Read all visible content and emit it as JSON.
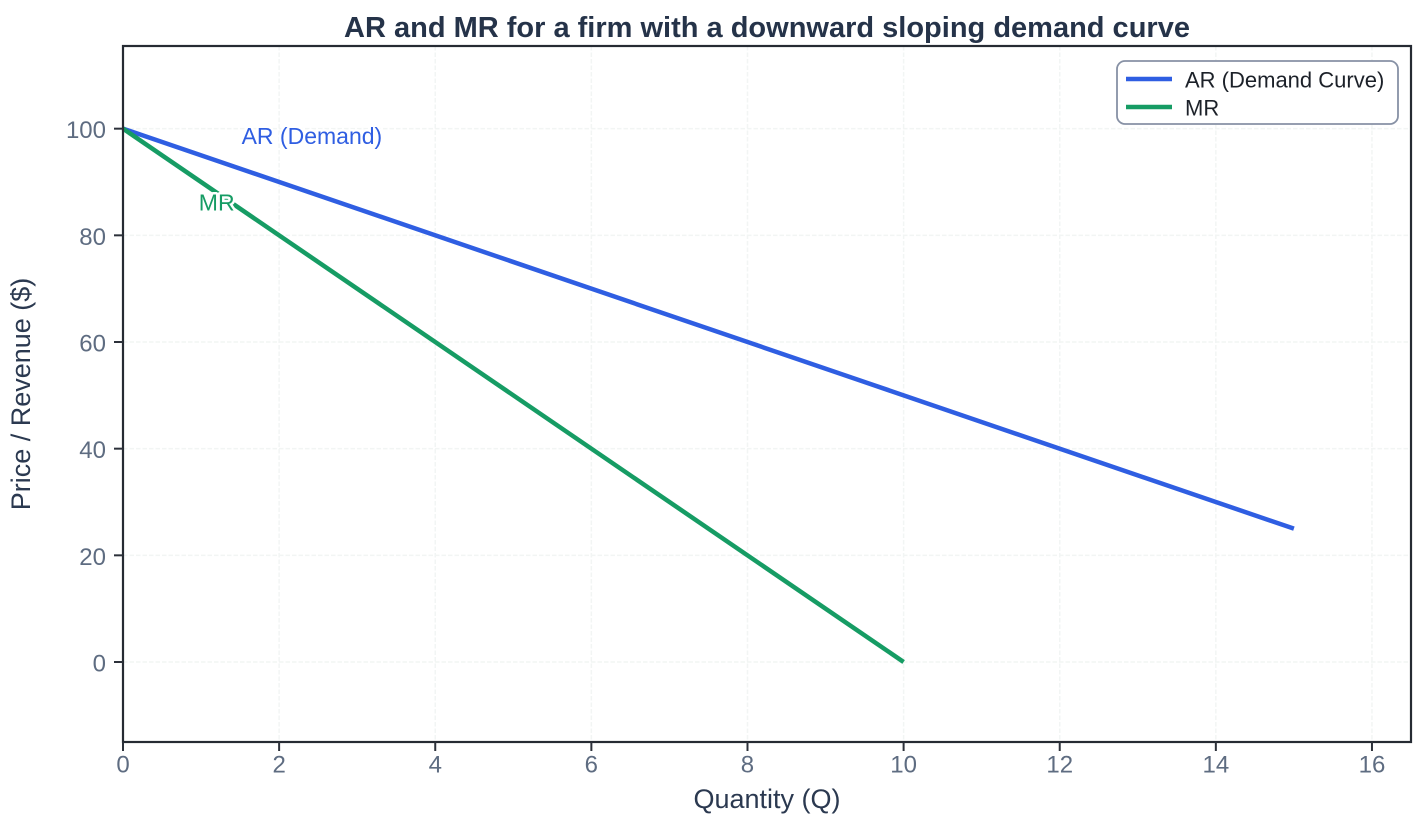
{
  "figure": {
    "title": "AR and MR for a firm with a downward sloping demand curve"
  },
  "style": {
    "background": "#ffffff",
    "plot_background": "#ffffff",
    "spine_color": "#262b33",
    "grid_color": "#f2f5f4",
    "tick_color": "#2c313a",
    "tick_label_color": "#5e6c81",
    "axis_label_color": "#2b3950",
    "title_color": "#253349",
    "legend_border_color": "#8791a5",
    "legend_text_color": "#1c2129",
    "ar_line_color": "#2f5ee2",
    "mr_line_color": "#169c64"
  },
  "chart_data": {
    "type": "line",
    "title": "AR and MR for a firm with a downward sloping demand curve",
    "xlabel": "Quantity (Q)",
    "ylabel": "Price / Revenue ($)",
    "xlim": [
      0,
      16.5
    ],
    "ylim": [
      -15,
      115.5
    ],
    "xticks": [
      0,
      2,
      4,
      6,
      8,
      10,
      12,
      14,
      16
    ],
    "yticks": [
      0,
      20,
      40,
      60,
      80,
      100
    ],
    "grid": true,
    "grid_style": "dashed",
    "legend_position": "upper right",
    "series": [
      {
        "name": "AR (Demand Curve)",
        "color": "#2f5ee2",
        "x": [
          0,
          15
        ],
        "y": [
          100,
          25
        ]
      },
      {
        "name": "MR",
        "color": "#169c64",
        "x": [
          0,
          10
        ],
        "y": [
          100,
          0
        ]
      }
    ],
    "annotations": [
      {
        "text": "AR (Demand)",
        "x": 2.42,
        "y": 98.6,
        "color": "#2f5ee2"
      },
      {
        "text": "MR",
        "x": 1.2,
        "y": 86.2,
        "color": "#169c64"
      }
    ]
  }
}
